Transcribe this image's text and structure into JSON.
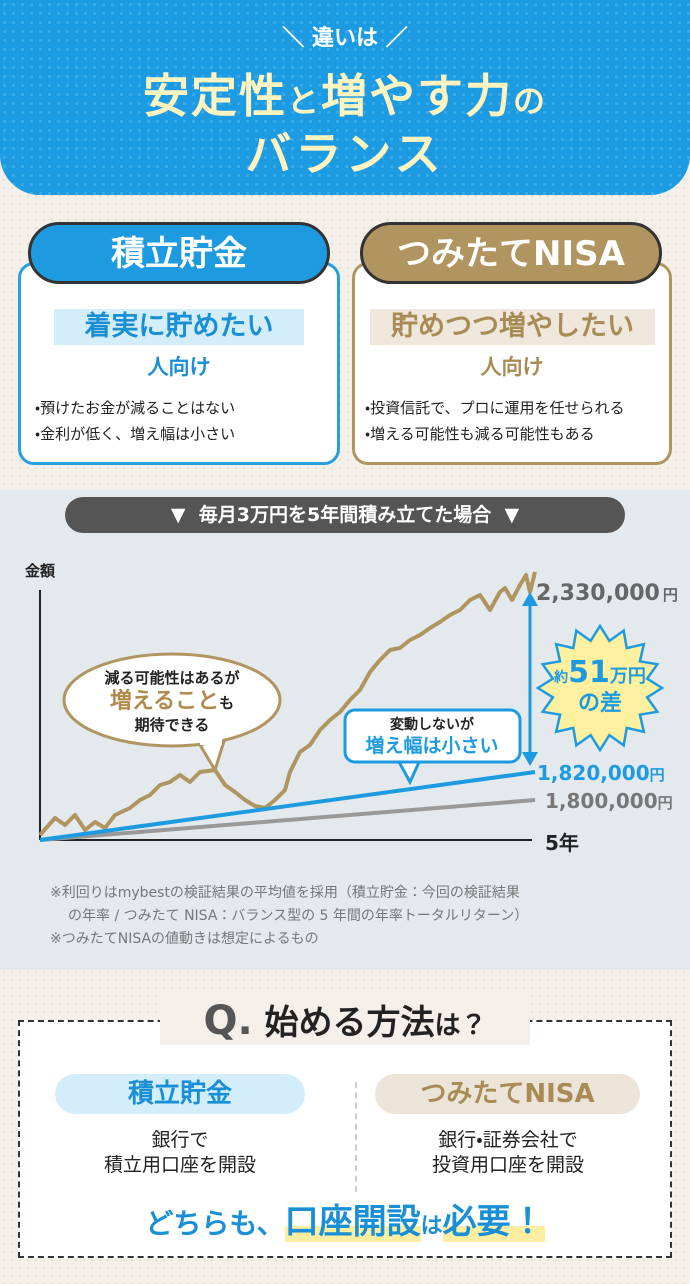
{
  "header": {
    "tag": "違いは",
    "title": [
      "安定性",
      "と",
      "増やす力",
      "の"
    ],
    "title2": "バランス"
  },
  "cards": [
    {
      "name": "積立貯金",
      "target": "着実に貯めたい",
      "suffix": "人向け",
      "points": [
        "・預けたお金が減ることはない",
        "・金利が低く、増え幅は小さい"
      ]
    },
    {
      "name": "つみたてNISA",
      "target": "貯めつつ増やしたい",
      "suffix": "人向け",
      "points": [
        "・投資信託で、プロに運用を任せられる",
        "・増える可能性も減る可能性もある"
      ]
    }
  ],
  "banner": "毎月3万円を5年間積み立てた場合",
  "chart": {
    "y_label": "金額",
    "x_label": "5年",
    "ends": [
      {
        "value": "2,330,000",
        "unit": "円"
      },
      {
        "value": "1,820,000",
        "unit": "円"
      },
      {
        "value": "1,800,000",
        "unit": "円"
      }
    ],
    "callout1": {
      "line1": "減る可能性はあるが",
      "emph": "増えること",
      "emph_suffix": "も",
      "line3": "期待できる"
    },
    "callout2": {
      "line1": "変動しないが",
      "emph": "増え幅は小さい"
    },
    "burst": {
      "prefix": "約",
      "number": "51",
      "unit": "万円",
      "suffix": "の差"
    }
  },
  "notes": [
    "※利回りはmybestの検証結果の平均値を採用（積立貯金：今回の検証結果",
    "の年率 / つみたて NISA：バランス型の 5 年間の年率トータルリターン）",
    "※つみたてNISAの値動きは想定によるもの"
  ],
  "bottom": {
    "q": "Q.",
    "title": "始める方法",
    "title_suffix": "は？",
    "methods": [
      {
        "name": "積立貯金",
        "lines": [
          "銀行で",
          "積立用口座を開設"
        ]
      },
      {
        "name": "つみたてNISA",
        "lines": [
          "銀行・証券会社で",
          "投資用口座を開設"
        ]
      }
    ],
    "conclusion": [
      "どちらも、",
      "口座開設",
      "は",
      "必要！"
    ]
  }
}
